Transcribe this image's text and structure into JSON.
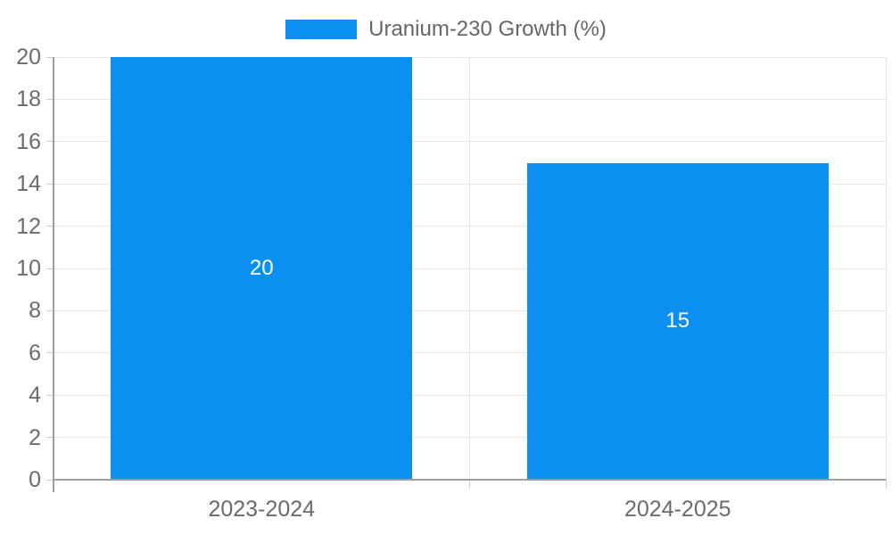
{
  "legend": {
    "label": "Uranium-230 Growth (%)"
  },
  "chart_data": {
    "type": "bar",
    "title": "",
    "categories": [
      "2023-2024",
      "2024-2025"
    ],
    "series": [
      {
        "name": "Uranium-230 Growth (%)",
        "values": [
          20,
          15
        ]
      }
    ],
    "value_labels": [
      "20",
      "15"
    ],
    "xlabel": "",
    "ylabel": "",
    "ylim": [
      0,
      20
    ],
    "ytick_step": 2,
    "yticks": [
      0,
      2,
      4,
      6,
      8,
      10,
      12,
      14,
      16,
      18,
      20
    ],
    "grid": true,
    "legend_position": "top",
    "bar_width_fraction": 0.725
  },
  "colors": {
    "bar": "#0b90f2",
    "grid": "#e6e6e6",
    "axis": "#9e9e9e",
    "tick": "#c9c9c9",
    "text": "#666666",
    "tick_text": "#6b6b6b",
    "value_label": "#ffffff",
    "background": "#ffffff"
  }
}
